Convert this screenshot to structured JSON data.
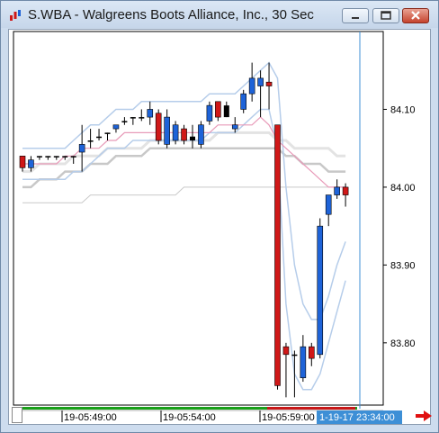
{
  "window": {
    "title": "S.WBA - Walgreens Boots Alliance, Inc., 30 Sec",
    "controls": [
      "minimize-icon",
      "maximize-icon",
      "close-icon"
    ]
  },
  "colors": {
    "up_candle": "#1e63d8",
    "down_candle": "#d01818",
    "band_light": "#b6cdea",
    "ma_pink": "#e89ab8",
    "ma_gray": "#c8c8c8",
    "cursor_line": "#3d8fd6",
    "price_badge_bg": "#3d8fd6",
    "timeline_green": "#1aa01a",
    "timeline_red": "#c81818",
    "nav_arrow": "#e01010"
  },
  "axis": {
    "y_ticks": [
      "84.10",
      "84.00",
      "83.90",
      "83.80"
    ],
    "x_ticks": [
      "19-05:49:00",
      "19-05:54:00",
      "19-05:59:00"
    ],
    "cursor_time": "1-19-17 23:34:00"
  },
  "chart_data": {
    "type": "candlestick",
    "ylim": [
      83.72,
      84.2
    ],
    "time_labels": [
      "19-05:49:00",
      "19-05:54:00",
      "19-05:59:00"
    ],
    "candles": [
      {
        "o": 84.025,
        "h": 84.04,
        "l": 84.02,
        "c": 84.04,
        "dir": "down"
      },
      {
        "o": 84.025,
        "h": 84.04,
        "l": 84.02,
        "c": 84.035,
        "dir": "up"
      },
      {
        "o": 84.04,
        "h": 84.04,
        "l": 84.035,
        "c": 84.04,
        "dir": "flat"
      },
      {
        "o": 84.04,
        "h": 84.04,
        "l": 84.035,
        "c": 84.04,
        "dir": "flat"
      },
      {
        "o": 84.04,
        "h": 84.04,
        "l": 84.035,
        "c": 84.04,
        "dir": "flat"
      },
      {
        "o": 84.04,
        "h": 84.04,
        "l": 84.035,
        "c": 84.04,
        "dir": "flat"
      },
      {
        "o": 84.04,
        "h": 84.04,
        "l": 84.03,
        "c": 84.04,
        "dir": "flat"
      },
      {
        "o": 84.045,
        "h": 84.08,
        "l": 84.02,
        "c": 84.055,
        "dir": "up"
      },
      {
        "o": 84.06,
        "h": 84.075,
        "l": 84.05,
        "c": 84.06,
        "dir": "flat"
      },
      {
        "o": 84.065,
        "h": 84.075,
        "l": 84.06,
        "c": 84.065,
        "dir": "flat"
      },
      {
        "o": 84.07,
        "h": 84.07,
        "l": 84.06,
        "c": 84.07,
        "dir": "flat"
      },
      {
        "o": 84.075,
        "h": 84.08,
        "l": 84.07,
        "c": 84.08,
        "dir": "up"
      },
      {
        "o": 84.085,
        "h": 84.09,
        "l": 84.08,
        "c": 84.085,
        "dir": "flat"
      },
      {
        "o": 84.09,
        "h": 84.09,
        "l": 84.08,
        "c": 84.09,
        "dir": "flat"
      },
      {
        "o": 84.09,
        "h": 84.1,
        "l": 84.085,
        "c": 84.09,
        "dir": "flat"
      },
      {
        "o": 84.09,
        "h": 84.11,
        "l": 84.08,
        "c": 84.1,
        "dir": "up"
      },
      {
        "o": 84.095,
        "h": 84.1,
        "l": 84.055,
        "c": 84.06,
        "dir": "down"
      },
      {
        "o": 84.055,
        "h": 84.1,
        "l": 84.05,
        "c": 84.09,
        "dir": "up"
      },
      {
        "o": 84.06,
        "h": 84.085,
        "l": 84.055,
        "c": 84.08,
        "dir": "up"
      },
      {
        "o": 84.075,
        "h": 84.08,
        "l": 84.055,
        "c": 84.06,
        "dir": "down"
      },
      {
        "o": 84.06,
        "h": 84.08,
        "l": 84.05,
        "c": 84.065,
        "dir": "flat"
      },
      {
        "o": 84.055,
        "h": 84.085,
        "l": 84.05,
        "c": 84.08,
        "dir": "up"
      },
      {
        "o": 84.085,
        "h": 84.11,
        "l": 84.08,
        "c": 84.105,
        "dir": "up"
      },
      {
        "o": 84.11,
        "h": 84.11,
        "l": 84.085,
        "c": 84.09,
        "dir": "down"
      },
      {
        "o": 84.09,
        "h": 84.11,
        "l": 84.09,
        "c": 84.105,
        "dir": "flat"
      },
      {
        "o": 84.075,
        "h": 84.09,
        "l": 84.07,
        "c": 84.08,
        "dir": "up"
      },
      {
        "o": 84.1,
        "h": 84.125,
        "l": 84.095,
        "c": 84.12,
        "dir": "up"
      },
      {
        "o": 84.12,
        "h": 84.16,
        "l": 84.11,
        "c": 84.14,
        "dir": "up"
      },
      {
        "o": 84.14,
        "h": 84.15,
        "l": 84.09,
        "c": 84.13,
        "dir": "up"
      },
      {
        "o": 84.135,
        "h": 84.16,
        "l": 84.1,
        "c": 84.13,
        "dir": "down"
      },
      {
        "o": 84.08,
        "h": 84.08,
        "l": 83.74,
        "c": 83.745,
        "dir": "down"
      },
      {
        "o": 83.795,
        "h": 83.8,
        "l": 83.73,
        "c": 83.785,
        "dir": "down"
      },
      {
        "o": 83.785,
        "h": 83.79,
        "l": 83.73,
        "c": 83.785,
        "dir": "flat"
      },
      {
        "o": 83.755,
        "h": 83.81,
        "l": 83.75,
        "c": 83.795,
        "dir": "up"
      },
      {
        "o": 83.795,
        "h": 83.8,
        "l": 83.77,
        "c": 83.78,
        "dir": "down"
      },
      {
        "o": 83.785,
        "h": 83.96,
        "l": 83.78,
        "c": 83.95,
        "dir": "up"
      },
      {
        "o": 83.965,
        "h": 83.99,
        "l": 83.95,
        "c": 83.99,
        "dir": "up"
      },
      {
        "o": 83.99,
        "h": 84.01,
        "l": 83.985,
        "c": 84.0,
        "dir": "up"
      },
      {
        "o": 84.0,
        "h": 84.005,
        "l": 83.975,
        "c": 83.99,
        "dir": "down"
      }
    ],
    "upper_band": [
      84.05,
      84.05,
      84.05,
      84.05,
      84.05,
      84.05,
      84.06,
      84.07,
      84.08,
      84.08,
      84.09,
      84.1,
      84.1,
      84.1,
      84.11,
      84.11,
      84.11,
      84.11,
      84.11,
      84.11,
      84.11,
      84.11,
      84.12,
      84.12,
      84.12,
      84.12,
      84.13,
      84.14,
      84.15,
      84.16,
      84.14,
      84.0,
      83.9,
      83.85,
      83.83,
      83.83,
      83.86,
      83.9,
      83.93
    ],
    "lower_band": [
      84.01,
      84.01,
      84.01,
      84.01,
      84.01,
      84.01,
      84.02,
      84.02,
      84.03,
      84.04,
      84.05,
      84.05,
      84.05,
      84.06,
      84.06,
      84.06,
      84.06,
      84.06,
      84.06,
      84.06,
      84.06,
      84.06,
      84.07,
      84.07,
      84.07,
      84.07,
      84.08,
      84.09,
      84.1,
      84.1,
      84.05,
      83.85,
      83.76,
      83.74,
      83.74,
      83.76,
      83.8,
      83.84,
      83.88
    ],
    "ma_pink": [
      84.03,
      84.03,
      84.03,
      84.03,
      84.03,
      84.04,
      84.04,
      84.05,
      84.05,
      84.05,
      84.06,
      84.06,
      84.07,
      84.07,
      84.07,
      84.07,
      84.07,
      84.07,
      84.07,
      84.07,
      84.07,
      84.07,
      84.07,
      84.08,
      84.08,
      84.08,
      84.08,
      84.08,
      84.09,
      84.08,
      84.06,
      84.05,
      84.04,
      84.03,
      84.02,
      84.01,
      84.0,
      84.0,
      84.0
    ],
    "ma_gray_upper": [
      84.02,
      84.02,
      84.03,
      84.03,
      84.03,
      84.03,
      84.04,
      84.04,
      84.04,
      84.04,
      84.05,
      84.05,
      84.05,
      84.05,
      84.05,
      84.06,
      84.06,
      84.06,
      84.06,
      84.06,
      84.06,
      84.06,
      84.06,
      84.07,
      84.07,
      84.07,
      84.07,
      84.07,
      84.07,
      84.07,
      84.06,
      84.06,
      84.05,
      84.05,
      84.05,
      84.05,
      84.05,
      84.04,
      84.04
    ],
    "ma_gray_mid": [
      84.0,
      84.0,
      84.01,
      84.01,
      84.01,
      84.02,
      84.02,
      84.02,
      84.03,
      84.03,
      84.03,
      84.04,
      84.04,
      84.04,
      84.04,
      84.05,
      84.05,
      84.05,
      84.05,
      84.05,
      84.05,
      84.05,
      84.05,
      84.05,
      84.05,
      84.05,
      84.05,
      84.05,
      84.05,
      84.05,
      84.05,
      84.04,
      84.04,
      84.03,
      84.03,
      84.03,
      84.02,
      84.02,
      84.02
    ],
    "ma_gray_low": [
      83.98,
      83.98,
      83.98,
      83.98,
      83.98,
      83.98,
      83.98,
      83.98,
      83.99,
      83.99,
      83.99,
      83.99,
      83.99,
      83.99,
      83.99,
      83.99,
      83.99,
      83.99,
      83.99,
      84.0,
      84.0,
      84.0,
      84.0,
      84.0,
      84.0,
      84.0,
      84.0,
      84.0,
      84.0,
      84.0,
      84.0,
      84.0,
      84.0,
      84.0,
      84.0,
      84.0,
      84.0,
      84.0,
      84.0
    ]
  }
}
